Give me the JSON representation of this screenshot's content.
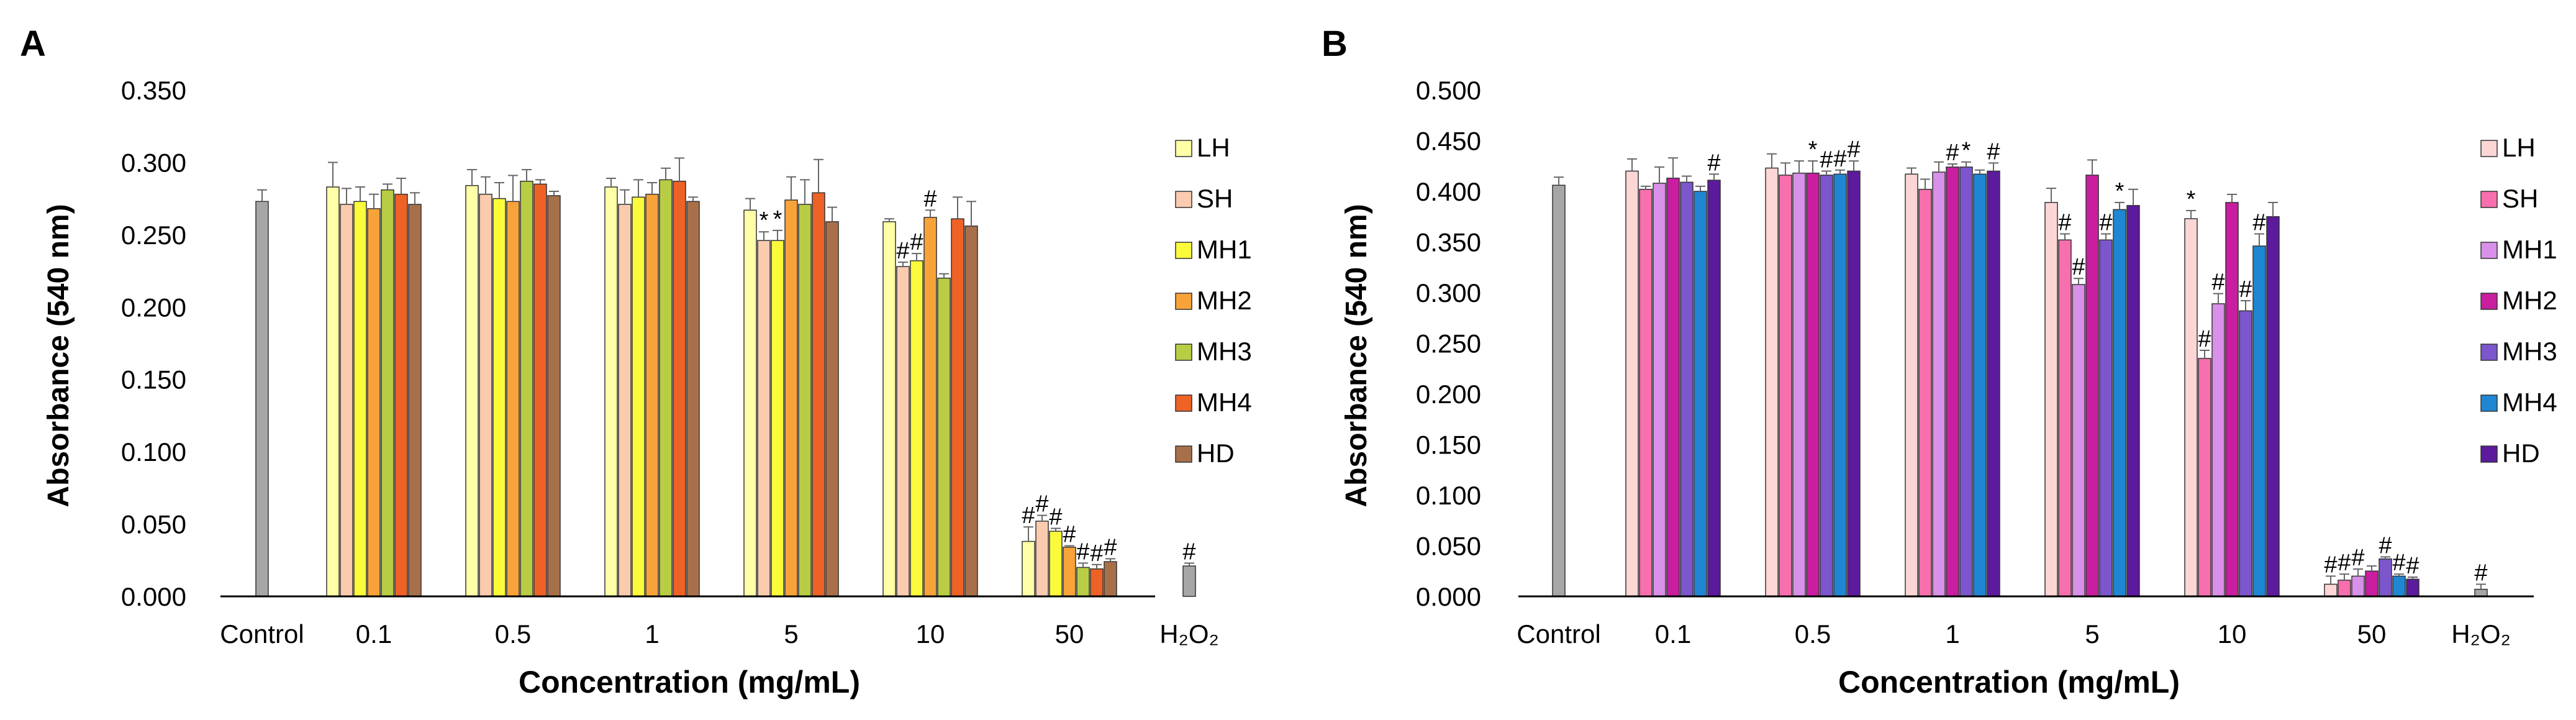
{
  "chart_data": [
    {
      "panel_label": "A",
      "type": "bar",
      "ylabel": "Absorbance (540 nm)",
      "xlabel": "Concentration (mg/mL)",
      "ylim": [
        0,
        0.35
      ],
      "yticks": [
        "0.000",
        "0.050",
        "0.100",
        "0.150",
        "0.200",
        "0.250",
        "0.300",
        "0.350"
      ],
      "control": {
        "label": "Control",
        "value": 0.273,
        "err": 0.008,
        "color": "#a6a6a6"
      },
      "h2o2": {
        "label": "H₂O₂",
        "value": 0.021,
        "err": 0.002,
        "color": "#a6a6a6",
        "mark": "#"
      },
      "legend": [
        {
          "name": "LH",
          "color": "#ffffa8"
        },
        {
          "name": "SH",
          "color": "#fbcbb0"
        },
        {
          "name": "MH1",
          "color": "#fbfb3c"
        },
        {
          "name": "MH2",
          "color": "#f7a33a"
        },
        {
          "name": "MH3",
          "color": "#b9cd44"
        },
        {
          "name": "MH4",
          "color": "#ef6226"
        },
        {
          "name": "HD",
          "color": "#a8704a"
        }
      ],
      "categories": [
        "0.1",
        "0.5",
        "1",
        "5",
        "10",
        "50"
      ],
      "series": [
        {
          "name": "LH",
          "values": [
            0.283,
            0.284,
            0.283,
            0.267,
            0.259,
            0.038
          ],
          "errors": [
            0.017,
            0.011,
            0.006,
            0.008,
            0.002,
            0.01
          ],
          "marks": [
            "",
            "",
            "",
            "",
            "",
            "#"
          ]
        },
        {
          "name": "SH",
          "values": [
            0.271,
            0.278,
            0.271,
            0.246,
            0.228,
            0.052
          ],
          "errors": [
            0.011,
            0.012,
            0.01,
            0.006,
            0.003,
            0.004
          ],
          "marks": [
            "",
            "",
            "",
            "*",
            "#",
            "#"
          ]
        },
        {
          "name": "MH1",
          "values": [
            0.273,
            0.275,
            0.276,
            0.246,
            0.232,
            0.045
          ],
          "errors": [
            0.01,
            0.011,
            0.012,
            0.007,
            0.005,
            0.002
          ],
          "marks": [
            "",
            "",
            "",
            "*",
            "#",
            "#"
          ]
        },
        {
          "name": "MH2",
          "values": [
            0.268,
            0.273,
            0.278,
            0.274,
            0.262,
            0.034
          ],
          "errors": [
            0.01,
            0.018,
            0.008,
            0.016,
            0.005,
            0.001
          ],
          "marks": [
            "",
            "",
            "",
            "",
            "#",
            "#"
          ]
        },
        {
          "name": "MH3",
          "values": [
            0.281,
            0.287,
            0.288,
            0.271,
            0.22,
            0.02
          ],
          "errors": [
            0.004,
            0.008,
            0.008,
            0.017,
            0.003,
            0.003
          ],
          "marks": [
            "",
            "",
            "",
            "",
            "",
            "#"
          ]
        },
        {
          "name": "MH4",
          "values": [
            0.278,
            0.285,
            0.287,
            0.279,
            0.261,
            0.019
          ],
          "errors": [
            0.011,
            0.003,
            0.016,
            0.023,
            0.015,
            0.003
          ],
          "marks": [
            "",
            "",
            "",
            "",
            "",
            "#"
          ]
        },
        {
          "name": "HD",
          "values": [
            0.271,
            0.277,
            0.273,
            0.259,
            0.256,
            0.024
          ],
          "errors": [
            0.008,
            0.003,
            0.003,
            0.01,
            0.017,
            0.002
          ],
          "marks": [
            "",
            "",
            "",
            "",
            "",
            "#"
          ]
        }
      ]
    },
    {
      "panel_label": "B",
      "type": "bar",
      "ylabel": "Absorbance (540 nm)",
      "xlabel": "Concentration (mg/mL)",
      "ylim": [
        0,
        0.5
      ],
      "yticks": [
        "0.000",
        "0.050",
        "0.100",
        "0.150",
        "0.200",
        "0.250",
        "0.300",
        "0.350",
        "0.400",
        "0.450",
        "0.500"
      ],
      "control": {
        "label": "Control",
        "value": 0.406,
        "err": 0.008,
        "color": "#a6a6a6"
      },
      "h2o2": {
        "label": "H₂O₂",
        "value": 0.007,
        "err": 0.005,
        "color": "#a6a6a6",
        "mark": "#"
      },
      "legend": [
        {
          "name": "LH",
          "color": "#fcd5d5"
        },
        {
          "name": "SH",
          "color": "#f76fad"
        },
        {
          "name": "MH1",
          "color": "#d890e8"
        },
        {
          "name": "MH2",
          "color": "#c81e9f"
        },
        {
          "name": "MH3",
          "color": "#7c56cc"
        },
        {
          "name": "MH4",
          "color": "#1f86d4"
        },
        {
          "name": "HD",
          "color": "#5c1a9c"
        }
      ],
      "categories": [
        "0.1",
        "0.5",
        "1",
        "5",
        "10",
        "50"
      ],
      "series": [
        {
          "name": "LH",
          "values": [
            0.42,
            0.423,
            0.417,
            0.389,
            0.373,
            0.012
          ],
          "errors": [
            0.012,
            0.014,
            0.006,
            0.014,
            0.008,
            0.008
          ],
          "marks": [
            "",
            "",
            "",
            "",
            "*",
            "#"
          ]
        },
        {
          "name": "SH",
          "values": [
            0.402,
            0.416,
            0.402,
            0.352,
            0.235,
            0.016
          ],
          "errors": [
            0.003,
            0.012,
            0.01,
            0.006,
            0.008,
            0.006
          ],
          "marks": [
            "",
            "",
            "",
            "#",
            "#",
            "#"
          ]
        },
        {
          "name": "MH1",
          "values": [
            0.408,
            0.418,
            0.419,
            0.308,
            0.289,
            0.02
          ],
          "errors": [
            0.016,
            0.012,
            0.01,
            0.006,
            0.01,
            0.007
          ],
          "marks": [
            "",
            "",
            "",
            "#",
            "#",
            "#"
          ]
        },
        {
          "name": "MH2",
          "values": [
            0.413,
            0.418,
            0.424,
            0.416,
            0.389,
            0.025
          ],
          "errors": [
            0.02,
            0.012,
            0.003,
            0.015,
            0.008,
            0.005
          ],
          "marks": [
            "",
            "*",
            "#",
            "",
            "",
            ""
          ]
        },
        {
          "name": "MH3",
          "values": [
            0.409,
            0.416,
            0.424,
            0.352,
            0.282,
            0.037
          ],
          "errors": [
            0.006,
            0.004,
            0.005,
            0.006,
            0.01,
            0.002
          ],
          "marks": [
            "",
            "#",
            "*",
            "#",
            "#",
            "#"
          ]
        },
        {
          "name": "MH4",
          "values": [
            0.4,
            0.417,
            0.417,
            0.382,
            0.346,
            0.02
          ],
          "errors": [
            0.005,
            0.004,
            0.004,
            0.007,
            0.012,
            0.002
          ],
          "marks": [
            "",
            "#",
            "",
            "*",
            "#",
            "#"
          ]
        },
        {
          "name": "HD",
          "values": [
            0.411,
            0.42,
            0.42,
            0.386,
            0.375,
            0.017
          ],
          "errors": [
            0.006,
            0.01,
            0.008,
            0.016,
            0.014,
            0.002
          ],
          "marks": [
            "#",
            "#",
            "#",
            "",
            "",
            "#"
          ]
        }
      ]
    }
  ]
}
